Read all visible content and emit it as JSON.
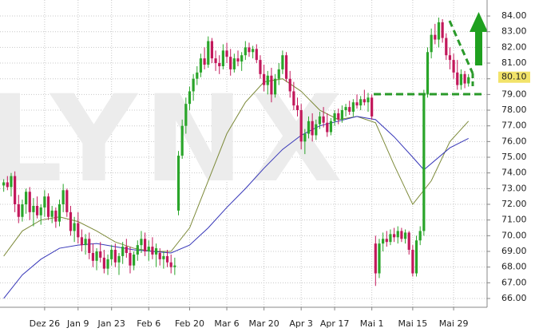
{
  "chart_data": {
    "type": "candlestick",
    "watermark": "LYNX",
    "up_color": "#2aa52a",
    "down_color": "#c2185b",
    "grid": true,
    "xlim": [
      -1,
      130
    ],
    "xticks": [
      {
        "value": 11,
        "label": "Dez 26"
      },
      {
        "value": 20,
        "label": "Jan 9"
      },
      {
        "value": 29,
        "label": "Jan 23"
      },
      {
        "value": 39,
        "label": "Feb 6"
      },
      {
        "value": 50,
        "label": "Feb 20"
      },
      {
        "value": 60,
        "label": "Mar 6"
      },
      {
        "value": 70,
        "label": "Mar 20"
      },
      {
        "value": 80,
        "label": "Apr 3"
      },
      {
        "value": 89,
        "label": "Apr 17"
      },
      {
        "value": 99,
        "label": "Mai 1"
      },
      {
        "value": 110,
        "label": "Mai 15"
      },
      {
        "value": 121,
        "label": "Mai 29"
      }
    ],
    "ylim": [
      65.44,
      85.02
    ],
    "yticks": [
      {
        "value": 66,
        "label": "66.00"
      },
      {
        "value": 67,
        "label": "67.00"
      },
      {
        "value": 68,
        "label": "68.00"
      },
      {
        "value": 69,
        "label": "69.00"
      },
      {
        "value": 70,
        "label": "70.00"
      },
      {
        "value": 71,
        "label": "71.00"
      },
      {
        "value": 72,
        "label": "72.00"
      },
      {
        "value": 73,
        "label": "73.00"
      },
      {
        "value": 74,
        "label": "74.00"
      },
      {
        "value": 75,
        "label": "75.00"
      },
      {
        "value": 76,
        "label": "76.00"
      },
      {
        "value": 77,
        "label": "77.00"
      },
      {
        "value": 78,
        "label": "78.00"
      },
      {
        "value": 79,
        "label": "79.00"
      },
      {
        "value": 80,
        "label": "80.00"
      },
      {
        "value": 81,
        "label": "81.00"
      },
      {
        "value": 82,
        "label": "82.00"
      },
      {
        "value": 83,
        "label": "83.00"
      },
      {
        "value": 84,
        "label": "84.00"
      }
    ],
    "last_price": {
      "value": 80.1,
      "label": "80.10",
      "color": "#f2e36a"
    },
    "ohlc": [
      [
        73.2,
        73.6,
        72.8,
        73.4
      ],
      [
        73.4,
        73.8,
        72.9,
        73.1
      ],
      [
        73.1,
        74.0,
        72.5,
        73.8
      ],
      [
        73.8,
        74.1,
        71.5,
        72.0
      ],
      [
        72.0,
        72.6,
        70.8,
        71.2
      ],
      [
        71.2,
        72.3,
        70.9,
        72.0
      ],
      [
        72.0,
        73.0,
        71.4,
        72.8
      ],
      [
        72.8,
        73.1,
        71.0,
        71.5
      ],
      [
        71.5,
        72.4,
        70.6,
        71.9
      ],
      [
        71.9,
        72.5,
        71.1,
        71.3
      ],
      [
        71.3,
        72.0,
        70.7,
        71.8
      ],
      [
        71.8,
        72.9,
        71.2,
        72.5
      ],
      [
        72.5,
        72.7,
        71.0,
        71.2
      ],
      [
        71.2,
        71.9,
        70.8,
        71.6
      ],
      [
        71.6,
        71.8,
        70.5,
        70.9
      ],
      [
        70.9,
        72.3,
        70.6,
        72.0
      ],
      [
        72.0,
        73.3,
        71.5,
        72.9
      ],
      [
        72.9,
        73.0,
        71.2,
        71.5
      ],
      [
        71.5,
        71.9,
        70.0,
        70.3
      ],
      [
        70.3,
        71.2,
        69.6,
        70.8
      ],
      [
        70.8,
        71.5,
        69.5,
        69.9
      ],
      [
        69.9,
        70.4,
        69.0,
        69.4
      ],
      [
        69.4,
        70.1,
        68.8,
        69.8
      ],
      [
        69.8,
        70.2,
        68.5,
        68.9
      ],
      [
        68.9,
        69.5,
        68.0,
        68.4
      ],
      [
        68.4,
        69.2,
        67.8,
        69.0
      ],
      [
        69.0,
        69.6,
        68.3,
        68.6
      ],
      [
        68.6,
        69.1,
        67.6,
        67.9
      ],
      [
        67.9,
        68.8,
        67.5,
        68.5
      ],
      [
        68.5,
        69.4,
        68.1,
        69.1
      ],
      [
        69.1,
        69.5,
        68.0,
        68.3
      ],
      [
        68.3,
        68.9,
        67.5,
        68.7
      ],
      [
        68.7,
        69.6,
        68.2,
        69.3
      ],
      [
        69.3,
        69.8,
        68.6,
        68.9
      ],
      [
        68.9,
        69.3,
        67.6,
        68.1
      ],
      [
        68.1,
        69.0,
        67.8,
        68.8
      ],
      [
        68.8,
        69.7,
        68.4,
        69.4
      ],
      [
        69.4,
        70.3,
        68.9,
        69.8
      ],
      [
        69.8,
        70.2,
        68.7,
        69.0
      ],
      [
        69.0,
        69.7,
        68.4,
        69.3
      ],
      [
        69.3,
        69.9,
        68.5,
        68.8
      ],
      [
        68.8,
        69.5,
        68.0,
        69.2
      ],
      [
        68.9,
        69.2,
        68.1,
        68.5
      ],
      [
        68.5,
        69.0,
        67.9,
        68.7
      ],
      [
        68.7,
        69.1,
        68.0,
        68.3
      ],
      [
        68.3,
        68.8,
        67.6,
        68.0
      ],
      [
        68.0,
        68.6,
        67.5,
        68.1
      ],
      [
        71.6,
        75.4,
        71.3,
        75.1
      ],
      [
        75.1,
        77.4,
        74.9,
        77.0
      ],
      [
        77.0,
        78.8,
        76.5,
        78.4
      ],
      [
        78.4,
        79.5,
        78.0,
        79.2
      ],
      [
        79.2,
        80.3,
        78.6,
        80.0
      ],
      [
        80.0,
        80.8,
        79.6,
        80.4
      ],
      [
        80.4,
        81.6,
        80.1,
        81.3
      ],
      [
        81.3,
        82.0,
        80.6,
        80.9
      ],
      [
        80.9,
        82.7,
        80.7,
        82.4
      ],
      [
        82.4,
        82.6,
        81.0,
        81.3
      ],
      [
        81.3,
        81.8,
        80.5,
        81.0
      ],
      [
        81.0,
        81.5,
        80.3,
        80.8
      ],
      [
        80.8,
        82.2,
        80.6,
        81.8
      ],
      [
        81.8,
        82.3,
        81.0,
        81.4
      ],
      [
        81.4,
        81.9,
        80.2,
        80.6
      ],
      [
        80.6,
        81.6,
        80.4,
        81.3
      ],
      [
        81.3,
        81.8,
        80.8,
        81.1
      ],
      [
        81.1,
        81.7,
        80.5,
        81.5
      ],
      [
        81.5,
        82.4,
        81.2,
        82.0
      ],
      [
        82.0,
        82.3,
        81.4,
        81.7
      ],
      [
        81.7,
        82.1,
        81.3,
        81.9
      ],
      [
        81.9,
        82.2,
        81.0,
        81.2
      ],
      [
        81.2,
        81.5,
        80.0,
        80.3
      ],
      [
        80.3,
        80.9,
        79.2,
        79.6
      ],
      [
        79.6,
        80.5,
        79.0,
        80.2
      ],
      [
        80.2,
        80.7,
        78.5,
        79.0
      ],
      [
        79.0,
        80.3,
        78.8,
        80.0
      ],
      [
        80.0,
        81.0,
        79.6,
        80.6
      ],
      [
        80.6,
        81.8,
        80.3,
        81.5
      ],
      [
        81.5,
        81.7,
        79.8,
        80.0
      ],
      [
        80.0,
        80.5,
        78.8,
        79.2
      ],
      [
        79.2,
        79.8,
        78.0,
        78.3
      ],
      [
        78.3,
        78.8,
        77.6,
        78.0
      ],
      [
        78.0,
        78.4,
        75.5,
        76.0
      ],
      [
        76.0,
        76.8,
        75.2,
        76.5
      ],
      [
        76.5,
        77.6,
        76.2,
        77.3
      ],
      [
        77.3,
        77.8,
        76.0,
        76.4
      ],
      [
        76.4,
        77.4,
        76.1,
        77.1
      ],
      [
        77.1,
        77.9,
        76.8,
        77.6
      ],
      [
        77.6,
        78.2,
        76.9,
        77.2
      ],
      [
        77.2,
        77.8,
        76.3,
        76.6
      ],
      [
        76.6,
        77.5,
        76.4,
        77.3
      ],
      [
        77.3,
        78.0,
        77.0,
        77.8
      ],
      [
        77.8,
        78.1,
        77.1,
        77.4
      ],
      [
        77.4,
        78.3,
        77.2,
        78.0
      ],
      [
        78.0,
        78.4,
        77.6,
        78.2
      ],
      [
        78.2,
        78.6,
        77.7,
        77.9
      ],
      [
        77.9,
        78.7,
        77.6,
        78.5
      ],
      [
        78.5,
        79.0,
        78.1,
        78.3
      ],
      [
        78.3,
        78.9,
        78.0,
        78.7
      ],
      [
        78.7,
        79.3,
        78.3,
        78.5
      ],
      [
        78.5,
        79.1,
        77.9,
        78.8
      ],
      [
        78.8,
        79.0,
        77.4,
        77.6
      ],
      [
        69.5,
        70.0,
        66.8,
        67.6
      ],
      [
        67.6,
        69.8,
        67.3,
        69.5
      ],
      [
        69.5,
        70.2,
        69.0,
        69.8
      ],
      [
        69.8,
        70.3,
        69.3,
        69.6
      ],
      [
        69.6,
        70.4,
        69.4,
        70.1
      ],
      [
        70.1,
        70.5,
        69.6,
        69.9
      ],
      [
        69.9,
        70.6,
        69.5,
        70.3
      ],
      [
        70.3,
        70.5,
        69.6,
        69.8
      ],
      [
        69.8,
        70.4,
        69.5,
        70.2
      ],
      [
        70.2,
        70.3,
        68.8,
        69.1
      ],
      [
        69.1,
        69.4,
        67.4,
        67.6
      ],
      [
        67.6,
        70.0,
        67.4,
        69.7
      ],
      [
        69.7,
        70.6,
        69.4,
        70.3
      ],
      [
        70.3,
        79.3,
        70.0,
        79.0
      ],
      [
        79.0,
        82.0,
        78.8,
        81.7
      ],
      [
        81.7,
        83.2,
        81.3,
        82.8
      ],
      [
        82.8,
        83.5,
        82.2,
        82.5
      ],
      [
        82.5,
        83.9,
        82.0,
        83.6
      ],
      [
        83.6,
        83.8,
        82.3,
        82.6
      ],
      [
        82.6,
        82.9,
        81.2,
        81.5
      ],
      [
        81.5,
        82.0,
        80.6,
        81.2
      ],
      [
        81.2,
        81.6,
        80.0,
        80.4
      ],
      [
        80.4,
        81.2,
        79.3,
        79.6
      ],
      [
        79.6,
        80.6,
        79.3,
        80.3
      ],
      [
        80.3,
        80.5,
        79.4,
        79.7
      ],
      [
        79.7,
        80.3,
        79.5,
        80.1
      ]
    ],
    "lines": [
      {
        "color": "#7d8a3a",
        "x": [
          0,
          5,
          10,
          15,
          20,
          25,
          30,
          35,
          40,
          45,
          50,
          55,
          60,
          65,
          70,
          75,
          80,
          85,
          90,
          95,
          100,
          105,
          110,
          115,
          120,
          125
        ],
        "values": [
          68.7,
          70.3,
          71.0,
          71.2,
          70.9,
          70.3,
          69.6,
          69.2,
          69.0,
          69.0,
          70.5,
          73.5,
          76.5,
          78.5,
          79.8,
          80.0,
          79.2,
          78.0,
          77.4,
          77.6,
          77.2,
          74.5,
          72.0,
          73.5,
          76.0,
          77.3
        ]
      },
      {
        "color": "#3636b8",
        "x": [
          0,
          5,
          10,
          15,
          20,
          25,
          30,
          35,
          40,
          45,
          50,
          55,
          60,
          65,
          70,
          75,
          80,
          85,
          90,
          95,
          100,
          105,
          110,
          113,
          120,
          125
        ],
        "values": [
          66.0,
          67.5,
          68.5,
          69.2,
          69.4,
          69.5,
          69.3,
          69.1,
          69.0,
          68.9,
          69.4,
          70.5,
          71.8,
          73.0,
          74.3,
          75.5,
          76.4,
          77.0,
          77.3,
          77.6,
          77.4,
          76.3,
          75.0,
          74.2,
          75.6,
          76.2
        ]
      }
    ]
  }
}
